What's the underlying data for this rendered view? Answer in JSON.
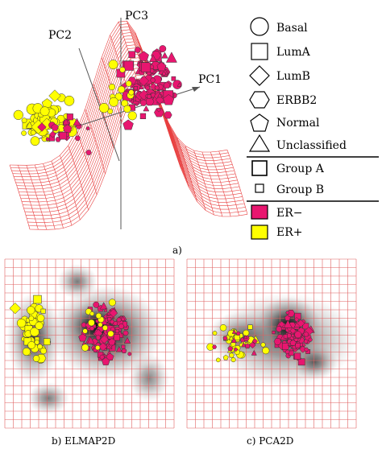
{
  "panel_a": {
    "caption": "a)",
    "axis_labels": {
      "pc1": "PC1",
      "pc2": "PC2",
      "pc3": "PC3"
    }
  },
  "legend": {
    "shapes": [
      {
        "label": "Basal",
        "icon": "circle-icon"
      },
      {
        "label": "LumA",
        "icon": "square-icon"
      },
      {
        "label": "LumB",
        "icon": "diamond-icon"
      },
      {
        "label": "ERBB2",
        "icon": "hexagon-icon"
      },
      {
        "label": "Normal",
        "icon": "pentagon-icon"
      },
      {
        "label": "Unclassified",
        "icon": "triangle-icon"
      }
    ],
    "groups": [
      {
        "label": "Group A",
        "icon": "large-square-icon"
      },
      {
        "label": "Group B",
        "icon": "small-square-icon"
      }
    ],
    "colors": [
      {
        "label": "ER−",
        "color": "#e8166f"
      },
      {
        "label": "ER+",
        "color": "#ffff00"
      }
    ]
  },
  "panel_b": {
    "caption": "b) ELMAP2D"
  },
  "panel_c": {
    "caption": "c) PCA2D"
  },
  "colors": {
    "er_neg": "#e8166f",
    "er_pos": "#ffff00",
    "grid": "#e06060",
    "mesh": "#e84040"
  }
}
